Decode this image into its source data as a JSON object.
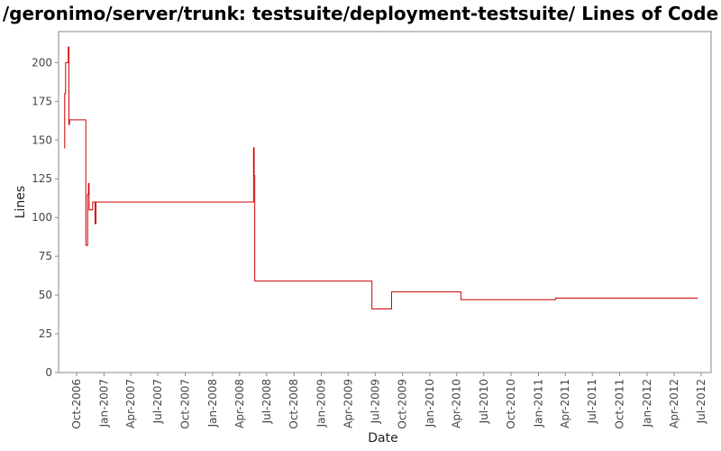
{
  "chart_data": {
    "type": "line",
    "step": true,
    "title": "/geronimo/server/trunk: testsuite/deployment-testsuite/ Lines of Code",
    "xlabel": "Date",
    "ylabel": "Lines",
    "ylim": [
      0,
      220
    ],
    "yticks": [
      0,
      25,
      50,
      75,
      100,
      125,
      150,
      175,
      200
    ],
    "xlim": [
      "2006-08-01",
      "2012-07-01"
    ],
    "xticks": [
      {
        "date": "2006-10-01",
        "label": "Oct-2006"
      },
      {
        "date": "2007-01-01",
        "label": "Jan-2007"
      },
      {
        "date": "2007-04-01",
        "label": "Apr-2007"
      },
      {
        "date": "2007-07-01",
        "label": "Jul-2007"
      },
      {
        "date": "2007-10-01",
        "label": "Oct-2007"
      },
      {
        "date": "2008-01-01",
        "label": "Jan-2008"
      },
      {
        "date": "2008-04-01",
        "label": "Apr-2008"
      },
      {
        "date": "2008-07-01",
        "label": "Jul-2008"
      },
      {
        "date": "2008-10-01",
        "label": "Oct-2008"
      },
      {
        "date": "2009-01-01",
        "label": "Jan-2009"
      },
      {
        "date": "2009-04-01",
        "label": "Apr-2009"
      },
      {
        "date": "2009-07-01",
        "label": "Jul-2009"
      },
      {
        "date": "2009-10-01",
        "label": "Oct-2009"
      },
      {
        "date": "2010-01-01",
        "label": "Jan-2010"
      },
      {
        "date": "2010-04-01",
        "label": "Apr-2010"
      },
      {
        "date": "2010-07-01",
        "label": "Jul-2010"
      },
      {
        "date": "2010-10-01",
        "label": "Oct-2010"
      },
      {
        "date": "2011-01-01",
        "label": "Jan-2011"
      },
      {
        "date": "2011-04-01",
        "label": "Apr-2011"
      },
      {
        "date": "2011-07-01",
        "label": "Jul-2011"
      },
      {
        "date": "2011-10-01",
        "label": "Oct-2011"
      },
      {
        "date": "2012-01-01",
        "label": "Jan-2012"
      },
      {
        "date": "2012-04-01",
        "label": "Apr-2012"
      },
      {
        "date": "2012-07-01",
        "label": "Jul-2012"
      }
    ],
    "grid": false,
    "line_color": "#cc0000",
    "series": [
      {
        "points": [
          {
            "x": "2006-08-20",
            "y": 145
          },
          {
            "x": "2006-08-22",
            "y": 180
          },
          {
            "x": "2006-08-25",
            "y": 200
          },
          {
            "x": "2006-09-03",
            "y": 210
          },
          {
            "x": "2006-09-05",
            "y": 160
          },
          {
            "x": "2006-09-07",
            "y": 163
          },
          {
            "x": "2006-11-01",
            "y": 82
          },
          {
            "x": "2006-11-07",
            "y": 115
          },
          {
            "x": "2006-11-10",
            "y": 122
          },
          {
            "x": "2006-11-12",
            "y": 105
          },
          {
            "x": "2006-11-24",
            "y": 110
          },
          {
            "x": "2006-12-02",
            "y": 96
          },
          {
            "x": "2006-12-05",
            "y": 110
          },
          {
            "x": "2008-05-18",
            "y": 145
          },
          {
            "x": "2008-05-20",
            "y": 127
          },
          {
            "x": "2008-05-22",
            "y": 59
          },
          {
            "x": "2009-06-20",
            "y": 41
          },
          {
            "x": "2009-08-25",
            "y": 52
          },
          {
            "x": "2010-04-15",
            "y": 47
          },
          {
            "x": "2011-02-28",
            "y": 48
          },
          {
            "x": "2012-06-20",
            "y": 48
          }
        ]
      }
    ]
  }
}
